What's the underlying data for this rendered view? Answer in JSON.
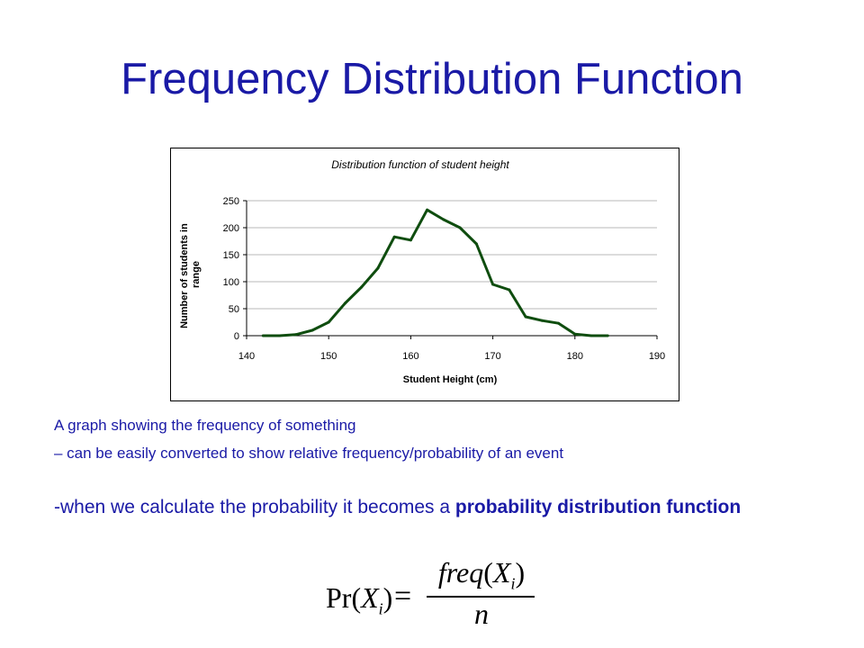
{
  "slide": {
    "title": "Frequency Distribution Function",
    "line1": "A graph showing the frequency of something",
    "line2": "– can be easily converted to show relative frequency/probability of an event",
    "line3_prefix": "-when we calculate the probability it becomes a ",
    "line3_bold": "probability distribution function"
  },
  "formula": {
    "lhs_fn": "Pr",
    "var": "X",
    "sub": "i",
    "equals": "=",
    "num_fn": "freq",
    "denominator": "n"
  },
  "chart_data": {
    "type": "line",
    "title": "Distribution function of student height",
    "xlabel": "Student Height (cm)",
    "ylabel": "Number of students in range",
    "xlim": [
      140,
      190
    ],
    "ylim": [
      0,
      250
    ],
    "x_ticks": [
      140,
      150,
      160,
      170,
      180,
      190
    ],
    "y_ticks": [
      0,
      50,
      100,
      150,
      200,
      250
    ],
    "grid": true,
    "legend": "none",
    "series_color": "#0f4d0f",
    "series": [
      {
        "x": [
          142,
          144,
          146,
          148,
          150,
          152,
          154,
          156,
          158,
          160,
          162,
          164,
          166,
          168,
          170,
          172,
          174,
          176,
          178,
          180,
          182,
          184
        ],
        "values": [
          0,
          0,
          2,
          10,
          25,
          60,
          90,
          125,
          183,
          177,
          233,
          215,
          200,
          170,
          95,
          85,
          35,
          28,
          23,
          3,
          0,
          0
        ]
      }
    ]
  }
}
